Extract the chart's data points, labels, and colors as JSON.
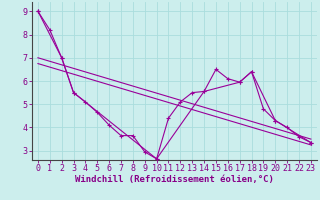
{
  "xlabel": "Windchill (Refroidissement éolien,°C)",
  "background_color": "#cceeed",
  "grid_color": "#aadddd",
  "line_color": "#990099",
  "spine_color": "#555555",
  "xlim": [
    -0.5,
    23.5
  ],
  "ylim": [
    2.6,
    9.4
  ],
  "yticks": [
    3,
    4,
    5,
    6,
    7,
    8,
    9
  ],
  "xticks": [
    0,
    1,
    2,
    3,
    4,
    5,
    6,
    7,
    8,
    9,
    10,
    11,
    12,
    13,
    14,
    15,
    16,
    17,
    18,
    19,
    20,
    21,
    22,
    23
  ],
  "series1_x": [
    0,
    1,
    2,
    3,
    4,
    5,
    6,
    7,
    8,
    9,
    10,
    11,
    12,
    13,
    14,
    15,
    16,
    17,
    18,
    19,
    20,
    21,
    22,
    23
  ],
  "series1_y": [
    9.0,
    8.2,
    7.0,
    5.5,
    5.1,
    4.65,
    4.1,
    3.65,
    3.65,
    2.95,
    2.65,
    4.4,
    5.1,
    5.5,
    5.55,
    6.5,
    6.1,
    5.95,
    6.4,
    4.8,
    4.3,
    4.0,
    3.6,
    3.35
  ],
  "series2_x": [
    0,
    2,
    3,
    10,
    14,
    17,
    18,
    20,
    23
  ],
  "series2_y": [
    9.0,
    7.0,
    5.5,
    2.65,
    5.55,
    5.95,
    6.4,
    4.3,
    3.35
  ],
  "series3_x": [
    0,
    23
  ],
  "series3_y": [
    7.0,
    3.5
  ],
  "series4_x": [
    0,
    23
  ],
  "series4_y": [
    6.75,
    3.25
  ],
  "xlabel_fontsize": 6.5,
  "tick_fontsize": 6.0,
  "label_color": "#880088"
}
